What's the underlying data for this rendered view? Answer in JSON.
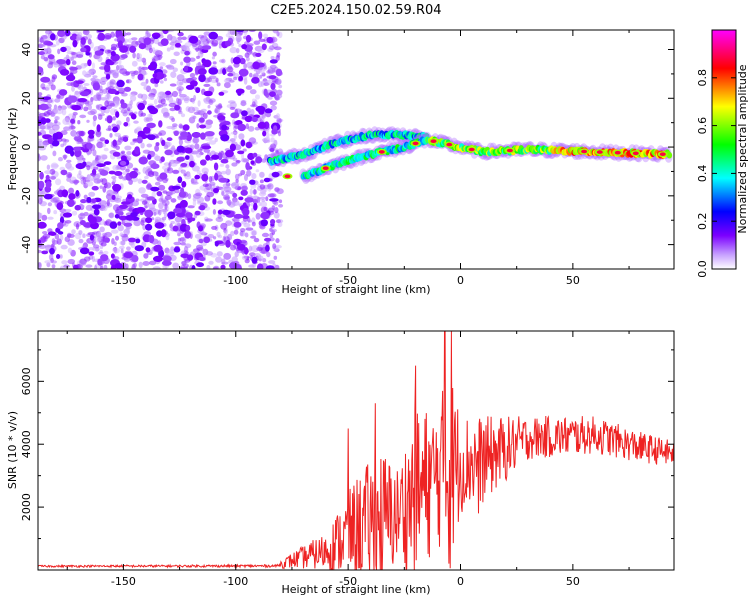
{
  "title": "C2E5.2024.150.02.59.R04",
  "chart_data": [
    {
      "type": "heatmap",
      "xlabel": "Height of straight line (km)",
      "ylabel": "Frequency (Hz)",
      "xlim": [
        -188,
        95
      ],
      "ylim": [
        -50,
        48
      ],
      "xticks": [
        -150,
        -100,
        -50,
        0,
        50
      ],
      "yticks": [
        -40,
        -20,
        0,
        20,
        40
      ],
      "colorbar": {
        "label": "Normalized spectral amplitude",
        "range": [
          0,
          1
        ],
        "ticks": [
          "0.0",
          "0.2",
          "0.4",
          "0.6",
          "0.8"
        ],
        "colormap": [
          "#ffffff",
          "#7b00ff",
          "#0000ff",
          "#00ffff",
          "#00ff00",
          "#ffff00",
          "#ff0000",
          "#ff00ff"
        ]
      },
      "noise_region": {
        "x_range": [
          -188,
          -80
        ],
        "description_amplitude": 0.1
      },
      "signal_branches": [
        {
          "name": "upper",
          "points": [
            [
              -85,
              -6
            ],
            [
              -70,
              -3
            ],
            [
              -55,
              2
            ],
            [
              -40,
              5
            ],
            [
              -25,
              5
            ],
            [
              -15,
              4
            ]
          ]
        },
        {
          "name": "lower",
          "points": [
            [
              -70,
              -12
            ],
            [
              -55,
              -7
            ],
            [
              -40,
              -3
            ],
            [
              -25,
              0
            ],
            [
              -15,
              3
            ],
            [
              -5,
              1
            ],
            [
              10,
              -2
            ],
            [
              30,
              -1
            ],
            [
              60,
              -2
            ],
            [
              93,
              -3
            ]
          ]
        }
      ]
    },
    {
      "type": "line",
      "xlabel": "Height of straight line (km)",
      "ylabel": "SNR (10 * v/v)",
      "xlim": [
        -188,
        95
      ],
      "ylim": [
        0,
        7600
      ],
      "xticks": [
        -150,
        -100,
        -50,
        0,
        50
      ],
      "yticks": [
        2000,
        4000,
        6000
      ],
      "color": "#ee2222",
      "envelope": [
        {
          "x": -188,
          "base": 120,
          "amp": 60
        },
        {
          "x": -82,
          "base": 130,
          "amp": 80
        },
        {
          "x": -75,
          "base": 300,
          "amp": 250
        },
        {
          "x": -60,
          "base": 600,
          "amp": 600
        },
        {
          "x": -45,
          "base": 1400,
          "amp": 1700
        },
        {
          "x": -35,
          "base": 1500,
          "amp": 2400
        },
        {
          "x": -28,
          "base": 1800,
          "amp": 1500
        },
        {
          "x": -20,
          "base": 2400,
          "amp": 2800
        },
        {
          "x": -10,
          "base": 3000,
          "amp": 2200
        },
        {
          "x": -5,
          "base": 3200,
          "amp": 3500
        },
        {
          "x": 0,
          "base": 3400,
          "amp": 1600
        },
        {
          "x": 10,
          "base": 3500,
          "amp": 1400
        },
        {
          "x": 30,
          "base": 4200,
          "amp": 700
        },
        {
          "x": 60,
          "base": 4300,
          "amp": 600
        },
        {
          "x": 80,
          "base": 3900,
          "amp": 500
        },
        {
          "x": 95,
          "base": 3700,
          "amp": 400
        }
      ],
      "spikes": [
        [
          -50,
          4500
        ],
        [
          -38,
          5300
        ],
        [
          -20,
          6500
        ],
        [
          -7,
          7600
        ],
        [
          -4,
          7600
        ],
        [
          8,
          1800
        ]
      ]
    }
  ]
}
